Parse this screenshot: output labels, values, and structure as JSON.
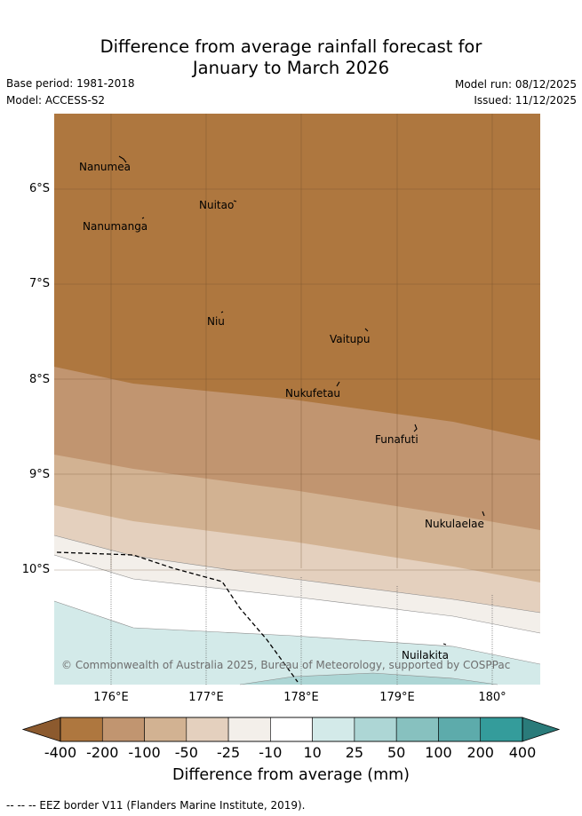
{
  "header": {
    "title_line1": "Difference from average rainfall forecast for",
    "title_line2": "January to March 2026",
    "base_period": "Base period: 1981-2018",
    "model": "Model: ACCESS-S2",
    "model_run": "Model run: 08/12/2025",
    "issued": "Issued: 11/12/2025"
  },
  "map": {
    "lat_labels": [
      "6°S",
      "7°S",
      "8°S",
      "9°S",
      "10°S"
    ],
    "lon_labels": [
      "176°E",
      "177°E",
      "178°E",
      "179°E",
      "180°"
    ],
    "places": [
      "Nanumea",
      "Nuitao",
      "Nanumanga",
      "Niu",
      "Vaitupu",
      "Nukufetau",
      "Funafuti",
      "Nukulaelae",
      "Nuilakita"
    ],
    "copyright": "© Commonwealth of Australia 2025, Bureau of Meteorology, supported by COSPPac"
  },
  "legend": {
    "ticks": [
      "-400",
      "-200",
      "-100",
      "-50",
      "-25",
      "-10",
      "10",
      "25",
      "50",
      "100",
      "200",
      "400"
    ],
    "colors": [
      "#8c5a2e",
      "#ae773f",
      "#c19570",
      "#d2b292",
      "#e4d0be",
      "#f3efea",
      "#ffffff",
      "#d3eae9",
      "#add6d5",
      "#87c1bf",
      "#5dabab",
      "#349c9b",
      "#2a7b7a"
    ],
    "label": "Difference from average (mm)"
  },
  "footnote": "-- --  -- EEZ border V11 (Flanders Marine Institute, 2019)."
}
